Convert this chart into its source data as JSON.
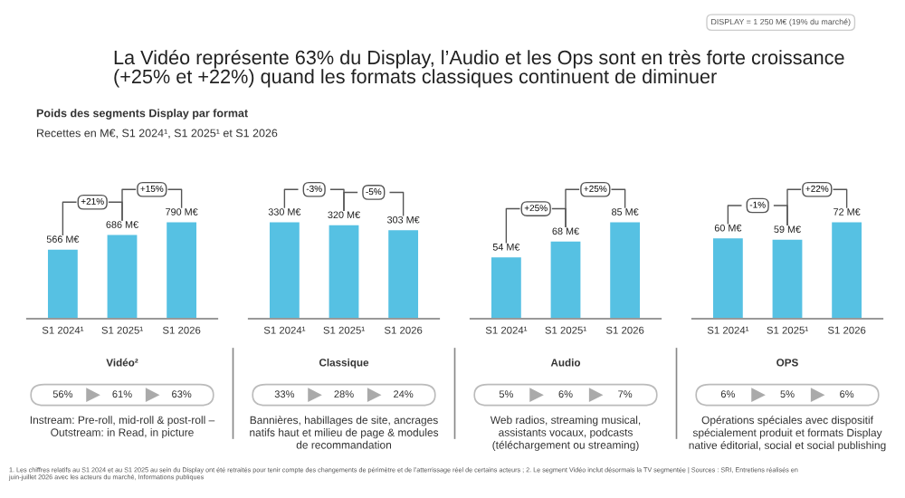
{
  "chart_data": [
    {
      "type": "bar",
      "title": "La Vidéo représente 63% du Display, l’Audio et les Ops sont en très forte croissance\n(+25% et +22%) quand les formats classiques continuent de diminuer",
      "subtitle": "Poids des segments Display par format",
      "xlabel": "Vidéo²",
      "categories": [
        "S1 2024¹",
        "S1 2025¹",
        "S1 2026"
      ],
      "values": [
        566,
        686,
        790
      ],
      "value_labels": [
        "566 M€",
        "686 M€",
        "790 M€"
      ],
      "color": "#56c1e3",
      "tick_labels": "x",
      "annotations": [
        "+21%",
        "+15%",
        "56%",
        "61%",
        "63%",
        "Instream: Pre-roll, mid-roll & post-roll –\nOutstream: in Read, in picture",
        "Recettes en M€, S1 2024¹, S1 2025¹ et S1 2026",
        "DISPLAY = 1 250 M€ (19% du marché)",
        "1. Les chiffres relatifs au S1 2024 et au S1 2025 au sein du Display ont été retraités pour tenir compte des changements de périmètre et de l’atterrissage réel de certains acteurs ; 2. Le segment Vidéo inclut désormais la TV segmentée | Sources : SRI, Entretiens réalisés en\njuin-juillet 2026 avec les acteurs du marché, Informations publiques"
      ]
    },
    {
      "type": "bar",
      "xlabel": "Classique",
      "categories": [
        "S1 2024¹",
        "S1 2025¹",
        "S1 2026"
      ],
      "values": [
        330,
        320,
        303
      ],
      "value_labels": [
        "330 M€",
        "320 M€",
        "303 M€"
      ],
      "color": "#56c1e3",
      "tick_labels": "x",
      "annotations": [
        "-3%",
        "-5%",
        "33%",
        "28%",
        "24%",
        "Bannières, habillages de site, ancrages\nnatifs haut et milieu de page & modules\nde recommandation"
      ]
    },
    {
      "type": "bar",
      "xlabel": "Audio",
      "categories": [
        "S1 2024¹",
        "S1 2025¹",
        "S1 2026"
      ],
      "values": [
        54,
        68,
        85
      ],
      "value_labels": [
        "54 M€",
        "68 M€",
        "85 M€"
      ],
      "color": "#56c1e3",
      "tick_labels": "x",
      "annotations": [
        "+25%",
        "+25%",
        "5%",
        "6%",
        "7%",
        "Web radios, streaming musical,\nassistants vocaux, podcasts\n(téléchargement ou streaming)"
      ]
    },
    {
      "type": "bar",
      "xlabel": "OPS",
      "categories": [
        "S1 2024¹",
        "S1 2025¹",
        "S1 2026"
      ],
      "values": [
        60,
        59,
        72
      ],
      "value_labels": [
        "60 M€",
        "59 M€",
        "72 M€"
      ],
      "color": "#56c1e3",
      "tick_labels": "x",
      "annotations": [
        "-1%",
        "+22%",
        "6%",
        "5%",
        "6%",
        "Opérations spéciales avec dispositif\nspécialement produit et formats Display\nnative éditorial, social et social publishing"
      ]
    }
  ]
}
